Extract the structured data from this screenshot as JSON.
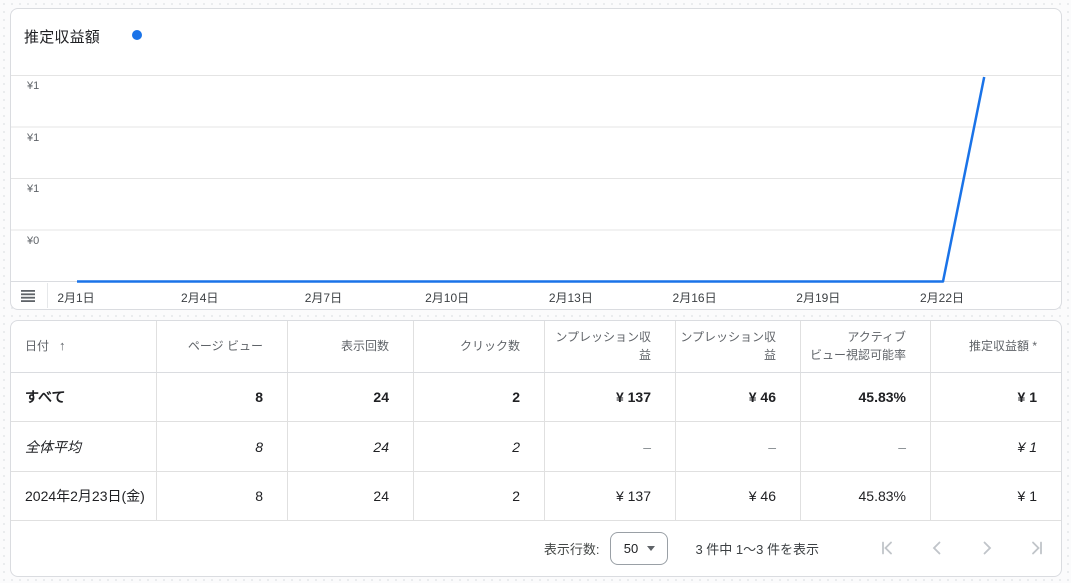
{
  "chart": {
    "title": "推定収益額",
    "legend_color": "#1a73e8",
    "y_tick_labels": [
      "¥1",
      "¥1",
      "¥1",
      "¥0"
    ],
    "x_tick_labels": [
      "2月1日",
      "2月4日",
      "2月7日",
      "2月10日",
      "2月13日",
      "2月16日",
      "2月19日",
      "2月22日"
    ]
  },
  "chart_data": {
    "type": "line",
    "title": "推定収益額",
    "x": [
      "2月1日",
      "2月2日",
      "2月3日",
      "2月4日",
      "2月5日",
      "2月6日",
      "2月7日",
      "2月8日",
      "2月9日",
      "2月10日",
      "2月11日",
      "2月12日",
      "2月13日",
      "2月14日",
      "2月15日",
      "2月16日",
      "2月17日",
      "2月18日",
      "2月19日",
      "2月20日",
      "2月21日",
      "2月22日",
      "2月23日"
    ],
    "values": [
      0,
      0,
      0,
      0,
      0,
      0,
      0,
      0,
      0,
      0,
      0,
      0,
      0,
      0,
      0,
      0,
      0,
      0,
      0,
      0,
      0,
      0,
      1
    ],
    "ylim": [
      0,
      1
    ],
    "y_tick_labels": [
      "¥1",
      "¥1",
      "¥1",
      "¥0"
    ],
    "grid": true,
    "line_color": "#1a73e8",
    "legend_position": "top-left"
  },
  "table": {
    "columns": [
      {
        "label": "日付",
        "sorted": "asc"
      },
      {
        "label": "ページ ビュー"
      },
      {
        "label": "表示回数"
      },
      {
        "label": "クリック数"
      },
      {
        "label": "ンプレッション収益"
      },
      {
        "label": "ンプレッション収益"
      },
      {
        "label": "アクティブ\nビュー視認可能率"
      },
      {
        "label": "推定収益額 *"
      }
    ],
    "rows": [
      {
        "style": "bold",
        "cells": [
          "すべて",
          "8",
          "24",
          "2",
          "¥ 137",
          "¥ 46",
          "45.83%",
          "¥ 1"
        ]
      },
      {
        "style": "italic",
        "cells": [
          "全体平均",
          "8",
          "24",
          "2",
          "–",
          "–",
          "–",
          "¥ 1"
        ]
      },
      {
        "style": "normal",
        "cells": [
          "2024年2月23日(金)",
          "8",
          "24",
          "2",
          "¥ 137",
          "¥ 46",
          "45.83%",
          "¥ 1"
        ]
      }
    ]
  },
  "pagination": {
    "rows_label": "表示行数:",
    "rows_value": "50",
    "range_text": "3 件中 1〜3 件を表示"
  }
}
